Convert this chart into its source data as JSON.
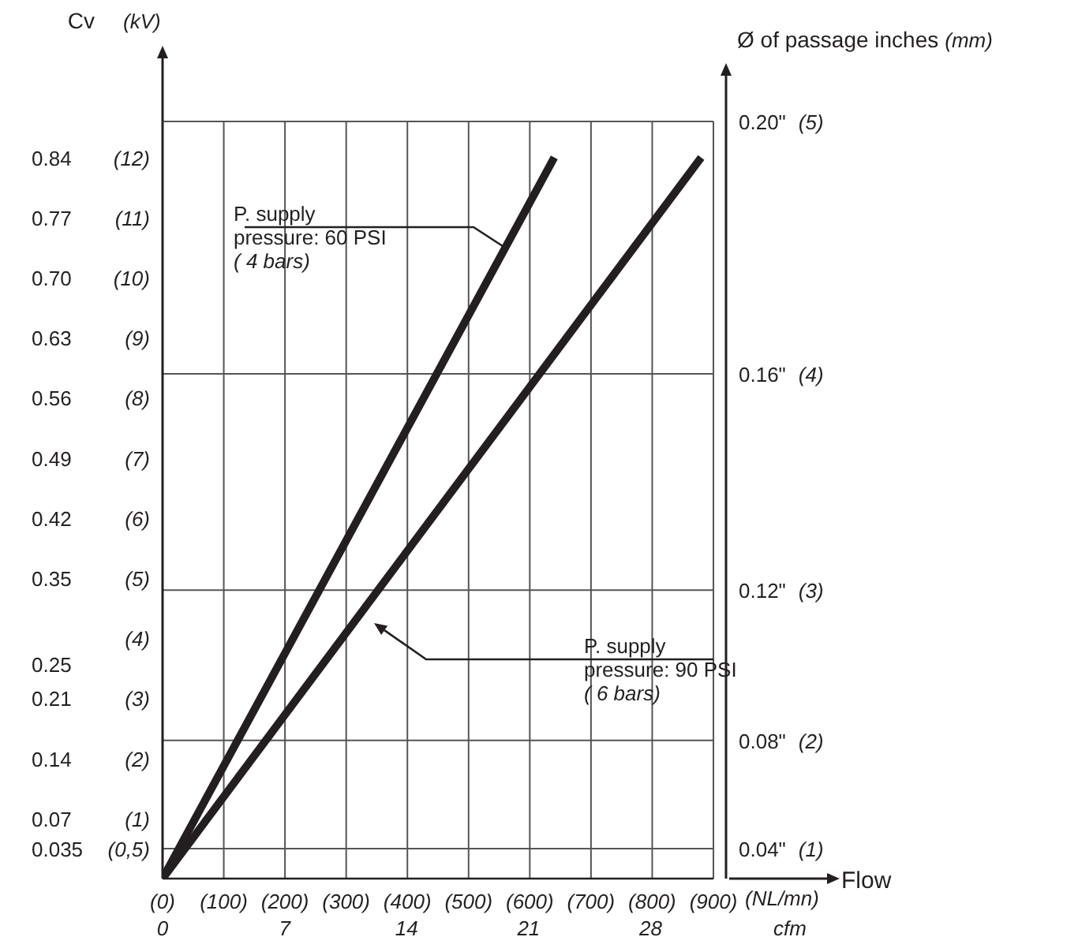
{
  "chart_data": {
    "type": "line",
    "ylabel": "Cv",
    "y3label": "(kV)",
    "xlabel": "(NL/mn)",
    "x2label": "cfm",
    "series": [
      {
        "x": [
          0,
          640
        ],
        "values": [
          0,
          0.84
        ],
        "color": "#231f20"
      },
      {
        "x": [
          0,
          880
        ],
        "values": [
          0,
          0.84
        ],
        "color": "#231f20"
      }
    ],
    "xlim": [
      0,
      900
    ],
    "xticks": [
      {
        "value": 0,
        "label": "(0)"
      },
      {
        "value": 100,
        "label": "(100)"
      },
      {
        "value": 200,
        "label": "(200)"
      },
      {
        "value": 300,
        "label": "(300)"
      },
      {
        "value": 400,
        "label": "(400)"
      },
      {
        "value": 500,
        "label": "(500)"
      },
      {
        "value": 600,
        "label": "(600)"
      },
      {
        "value": 700,
        "label": "(700)"
      },
      {
        "value": 800,
        "label": "(800)"
      },
      {
        "value": 900,
        "label": "(900)"
      }
    ],
    "x2lim": [
      0,
      31.6
    ],
    "x2ticks": [
      0,
      7,
      14,
      21,
      28
    ],
    "ylim": [
      0,
      0.882
    ],
    "yticks": [
      0.035,
      0.07,
      0.14,
      0.21,
      0.25,
      0.35,
      0.42,
      0.49,
      0.56,
      0.63,
      {
        "value": 0.7,
        "label": "0.70"
      },
      0.77,
      0.84
    ],
    "y3lim": [
      0,
      13.7
    ],
    "y3ticks": [
      {
        "value": 0.5,
        "label": "(0,5)"
      },
      {
        "value": 1,
        "label": "(1)"
      },
      {
        "value": 2,
        "label": "(2)"
      },
      {
        "value": 3,
        "label": "(3)"
      },
      {
        "value": 4,
        "label": "(4)"
      },
      {
        "value": 5,
        "label": "(5)"
      },
      {
        "value": 6,
        "label": "(6)"
      },
      {
        "value": 7,
        "label": "(7)"
      },
      {
        "value": 8,
        "label": "(8)"
      },
      {
        "value": 9,
        "label": "(9)"
      },
      {
        "value": 10,
        "label": "(10)"
      },
      {
        "value": 11,
        "label": "(11)"
      },
      {
        "value": 12,
        "label": "(12)"
      }
    ],
    "ref_lines": [
      {
        "axis": "y",
        "value": 0.035,
        "color": "#555555"
      },
      {
        "axis": "y",
        "value": 0.161,
        "color": "#555555"
      },
      {
        "axis": "y",
        "value": 0.336,
        "color": "#555555"
      },
      {
        "axis": "y",
        "value": 0.588,
        "color": "#555555"
      }
    ],
    "grid": "x",
    "line_style": "solid",
    "annotations": [
      "P. supply\npressure: 60 PSI\n( 4 bars)",
      "P. supply\npressure: 90 PSI\n( 6 bars)",
      "Flow",
      "Ø of passage inches (mm)",
      "0.04\" (1)",
      "0.08\" (2)",
      "0.12\" (3)",
      "0.16\" (4)",
      "0.20\" (5)"
    ]
  }
}
